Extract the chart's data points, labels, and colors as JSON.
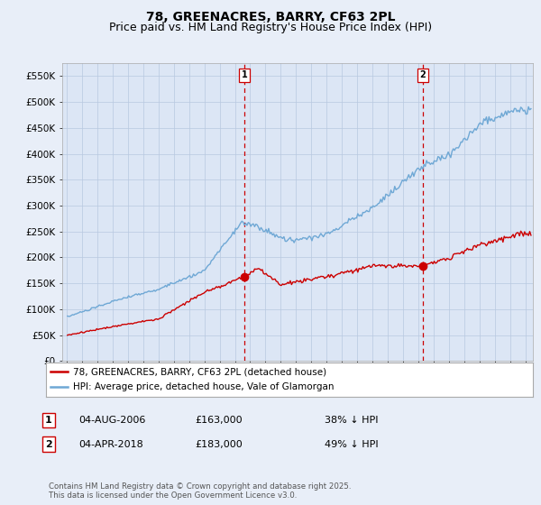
{
  "title": "78, GREENACRES, BARRY, CF63 2PL",
  "subtitle": "Price paid vs. HM Land Registry's House Price Index (HPI)",
  "background_color": "#e8eef8",
  "plot_bg_color": "#dce6f5",
  "ylim": [
    0,
    575000
  ],
  "yticks": [
    0,
    50000,
    100000,
    150000,
    200000,
    250000,
    300000,
    350000,
    400000,
    450000,
    500000,
    550000
  ],
  "ytick_labels": [
    "£0",
    "£50K",
    "£100K",
    "£150K",
    "£200K",
    "£250K",
    "£300K",
    "£350K",
    "£400K",
    "£450K",
    "£500K",
    "£550K"
  ],
  "sale1_price": 163000,
  "sale2_price": 183000,
  "sale1_pct": "38% ↓ HPI",
  "sale2_pct": "49% ↓ HPI",
  "red_line_color": "#cc0000",
  "blue_line_color": "#6fa8d5",
  "vline_color": "#cc0000",
  "legend_label_red": "78, GREENACRES, BARRY, CF63 2PL (detached house)",
  "legend_label_blue": "HPI: Average price, detached house, Vale of Glamorgan",
  "footnote": "Contains HM Land Registry data © Crown copyright and database right 2025.\nThis data is licensed under the Open Government Licence v3.0.",
  "title_fontsize": 10,
  "subtitle_fontsize": 9,
  "tick_fontsize": 7.5
}
